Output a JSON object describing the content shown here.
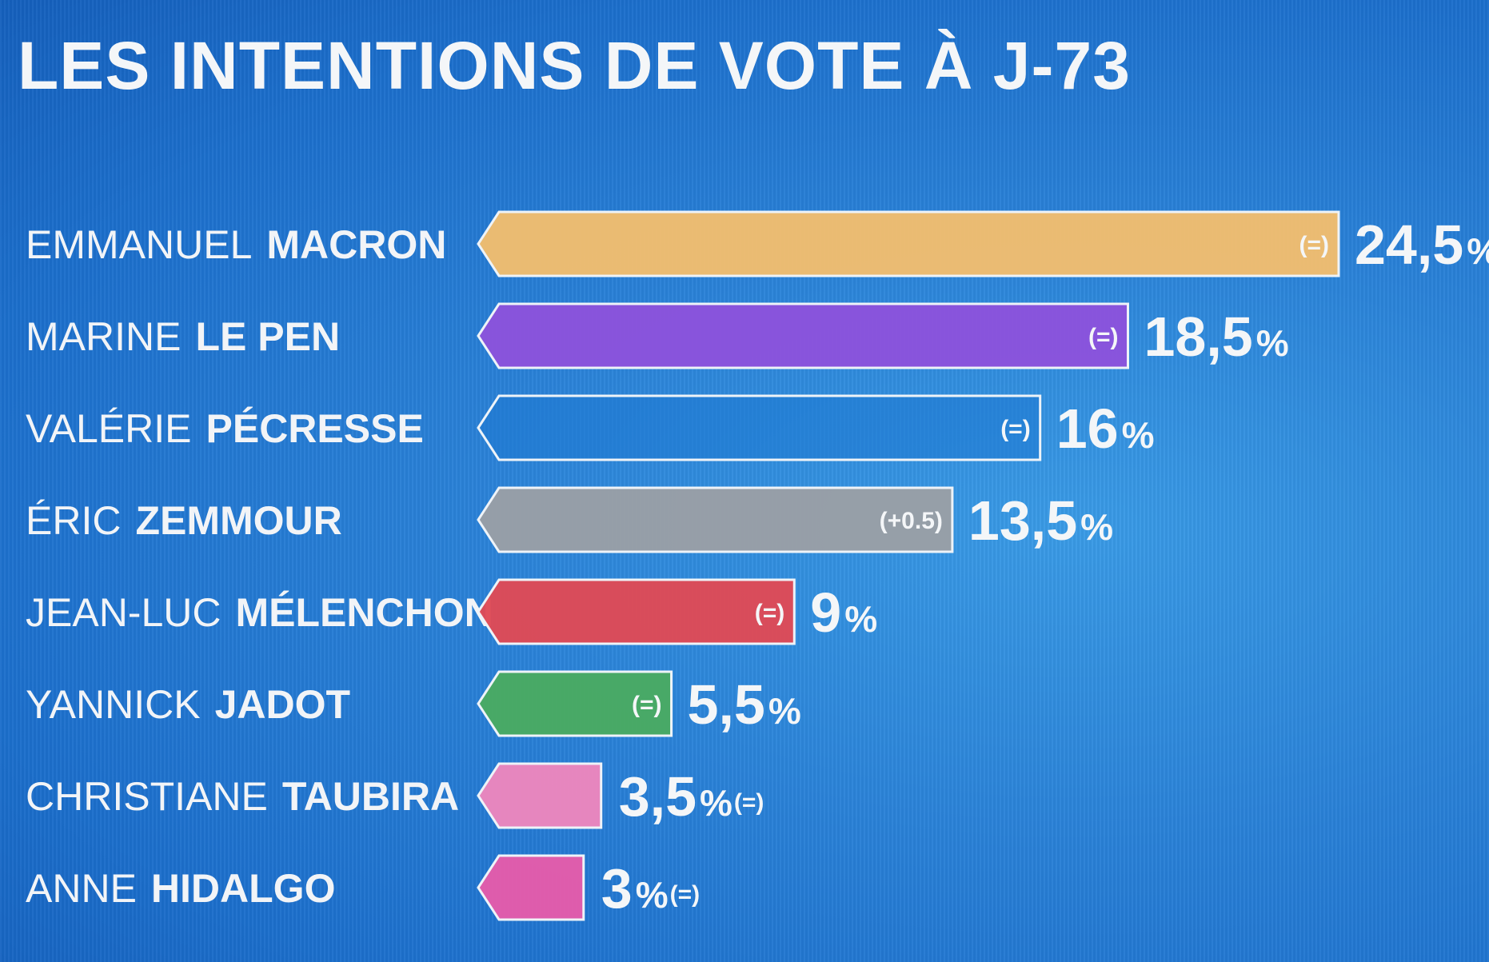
{
  "chart_data": {
    "type": "bar",
    "orientation": "horizontal",
    "title": "LES INTENTIONS DE VOTE À J-73",
    "unit": "%",
    "categories": [
      {
        "first": "EMMANUEL",
        "last": "MACRON"
      },
      {
        "first": "MARINE",
        "last": "LE PEN"
      },
      {
        "first": "VALÉRIE",
        "last": "PÉCRESSE"
      },
      {
        "first": "ÉRIC",
        "last": "ZEMMOUR"
      },
      {
        "first": "JEAN-LUC",
        "last": "MÉLENCHON"
      },
      {
        "first": "YANNICK",
        "last": "JADOT"
      },
      {
        "first": "CHRISTIANE",
        "last": "TAUBIRA"
      },
      {
        "first": "ANNE",
        "last": "HIDALGO"
      }
    ],
    "values": [
      24.5,
      18.5,
      16,
      13.5,
      9,
      5.5,
      3.5,
      3
    ],
    "value_labels": [
      "24,5",
      "18,5",
      "16",
      "13,5",
      "9",
      "5,5",
      "3,5",
      "3"
    ],
    "changes": [
      "(=)",
      "(=)",
      "(=)",
      "(+0.5)",
      "(=)",
      "(=)",
      "(=)",
      "(=)"
    ],
    "colors": [
      "#f2bd6e",
      "#8c52dc",
      "#1d78d2",
      "#9a9fa6",
      "#e04a55",
      "#4aab62",
      "#ee86bd",
      "#e65cab"
    ]
  }
}
